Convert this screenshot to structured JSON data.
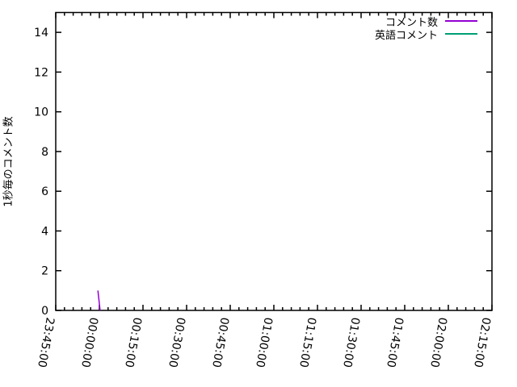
{
  "chart_data": {
    "type": "line",
    "title": "",
    "xlabel": "",
    "ylabel": "1秒毎のコメント数",
    "ylim": [
      0,
      15
    ],
    "yticks": [
      0,
      2,
      4,
      6,
      8,
      10,
      12,
      14
    ],
    "xtick_labels": [
      "23:45:00",
      "00:00:00",
      "00:15:00",
      "00:30:00",
      "00:45:00",
      "01:00:00",
      "01:15:00",
      "01:30:00",
      "01:45:00",
      "02:00:00",
      "02:15:00"
    ],
    "xtick_interval_minutes": 15,
    "minor_ticks_per_major": 5,
    "grid": false,
    "legend_position": "top-right-inside",
    "background_color": "#ffffff",
    "axis_color": "#000000",
    "series": [
      {
        "name": "コメント数",
        "color": "#9400d3",
        "points": [
          {
            "t": "23:59:30",
            "v": 1
          },
          {
            "t": "00:00:15",
            "v": 0
          }
        ]
      },
      {
        "name": "英語コメント",
        "color": "#009e73",
        "points": []
      }
    ]
  }
}
